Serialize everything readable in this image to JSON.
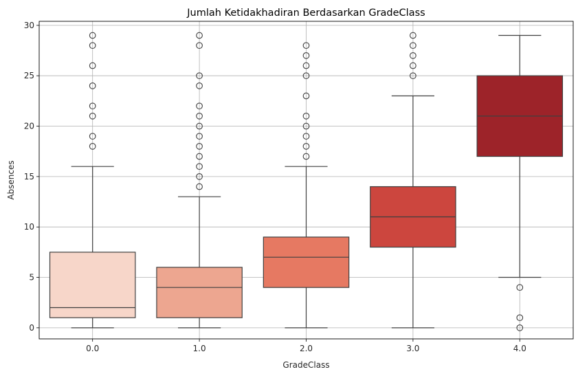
{
  "chart_data": {
    "type": "box",
    "title": "Jumlah Ketidakhadiran Berdasarkan GradeClass",
    "xlabel": "GradeClass",
    "ylabel": "Absences",
    "categories": [
      "0.0",
      "1.0",
      "2.0",
      "3.0",
      "4.0"
    ],
    "ylim": [
      -1.1,
      30.4
    ],
    "yticks": [
      0,
      5,
      10,
      15,
      20,
      25,
      30
    ],
    "grid": true,
    "legend": "none",
    "boxes": [
      {
        "category": "0.0",
        "whisker_low": 0,
        "q1": 1,
        "median": 2,
        "q3": 7.5,
        "whisker_high": 16,
        "outliers": [
          18,
          19,
          21,
          22,
          24,
          26,
          28,
          29
        ],
        "color": "#f7d6c9"
      },
      {
        "category": "1.0",
        "whisker_low": 0,
        "q1": 1,
        "median": 4,
        "q3": 6,
        "whisker_high": 13,
        "outliers": [
          14,
          15,
          16,
          17,
          18,
          19,
          20,
          21,
          22,
          24,
          25,
          28,
          29
        ],
        "color": "#eda690"
      },
      {
        "category": "2.0",
        "whisker_low": 0,
        "q1": 4,
        "median": 7,
        "q3": 9,
        "whisker_high": 16,
        "outliers": [
          17,
          18,
          19,
          20,
          21,
          23,
          25,
          26,
          27,
          28
        ],
        "color": "#e67962"
      },
      {
        "category": "3.0",
        "whisker_low": 0,
        "q1": 8,
        "median": 11,
        "q3": 14,
        "whisker_high": 23,
        "outliers": [
          25,
          26,
          27,
          28,
          29
        ],
        "color": "#cc463e"
      },
      {
        "category": "4.0",
        "whisker_low": 5,
        "q1": 17,
        "median": 21,
        "q3": 25,
        "whisker_high": 29,
        "outliers": [
          0,
          1,
          4
        ],
        "color": "#9d2329"
      }
    ]
  },
  "colors": {
    "line": "#3f3f3f",
    "grid": "#b0b0b0",
    "axis": "#000000"
  }
}
